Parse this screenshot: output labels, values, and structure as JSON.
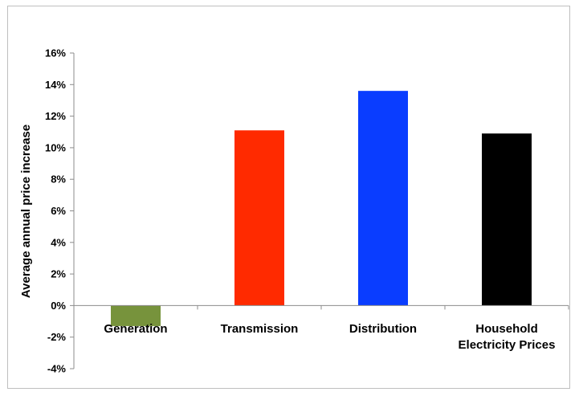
{
  "chart_data": {
    "type": "bar",
    "title": "",
    "xlabel": "",
    "ylabel": "Average annual price increase",
    "categories": [
      "Generation",
      "Transmission",
      "Distribution",
      "Household Electricity Prices"
    ],
    "category_lines": [
      [
        "Generation"
      ],
      [
        "Transmission"
      ],
      [
        "Distribution"
      ],
      [
        "Household",
        "Electricity Prices"
      ]
    ],
    "values": [
      -1.3,
      11.1,
      13.6,
      10.9
    ],
    "colors": [
      "#77933c",
      "#ff2a00",
      "#0a3dff",
      "#000000"
    ],
    "ylim": [
      -4,
      16
    ],
    "yticks": [
      16,
      14,
      12,
      10,
      8,
      6,
      4,
      2,
      0,
      -2,
      -4
    ],
    "ytick_labels": [
      "16%",
      "14%",
      "12%",
      "10%",
      "8%",
      "6%",
      "4%",
      "2%",
      "0%",
      "-2%",
      "-4%"
    ],
    "grid": false,
    "legend": "none"
  }
}
